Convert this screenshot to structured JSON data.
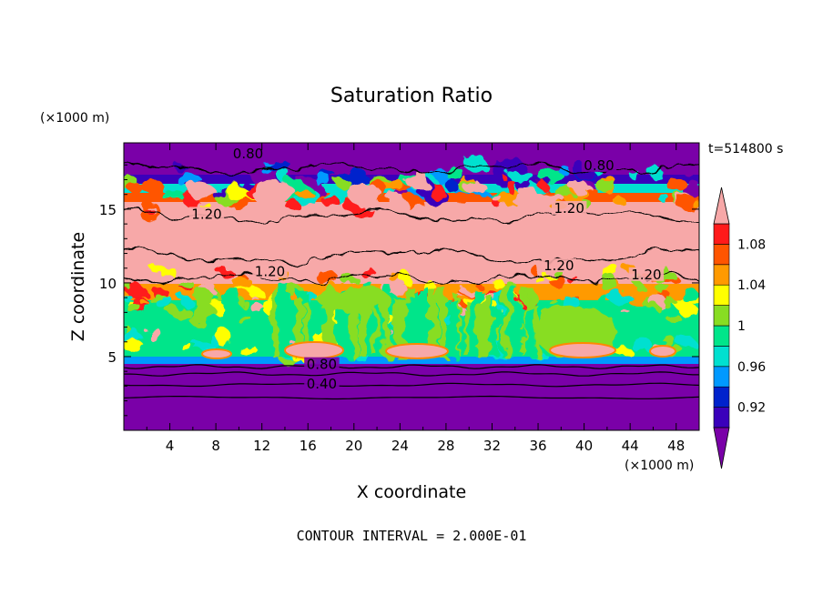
{
  "chart_data": {
    "type": "heatmap",
    "title": "Saturation Ratio",
    "xlabel": "X coordinate",
    "ylabel": "Z coordinate",
    "x_unit": "(×1000 m)",
    "y_unit": "(×1000 m)",
    "time_label": "t=514800 s",
    "footer": "CONTOUR INTERVAL = 2.000E-01",
    "xlim": [
      0,
      50
    ],
    "ylim": [
      0,
      19.5
    ],
    "x_ticks": [
      4,
      8,
      12,
      16,
      20,
      24,
      28,
      32,
      36,
      40,
      44,
      48
    ],
    "y_ticks": [
      5,
      10,
      15
    ],
    "colorbar": {
      "boundaries": [
        0.9,
        0.92,
        0.94,
        0.96,
        0.98,
        1.0,
        1.02,
        1.04,
        1.06,
        1.08,
        1.1
      ],
      "tick_labels": [
        "0.92",
        "0.96",
        "1",
        "1.04",
        "1.08"
      ],
      "tick_values": [
        0.92,
        0.96,
        1.0,
        1.04,
        1.08
      ],
      "colors": [
        "#7a00a8",
        "#3a00bb",
        "#0022cc",
        "#0099ff",
        "#00e0d0",
        "#00e58a",
        "#88dd22",
        "#ffff00",
        "#ff9a00",
        "#ff5500",
        "#ff1a1a",
        "#f7a8a8"
      ],
      "extend": "both"
    },
    "contour_labels": [
      {
        "text": "0.80",
        "x": 10.8,
        "z": 18.7
      },
      {
        "text": "0.80",
        "x": 41.3,
        "z": 17.9
      },
      {
        "text": "1.20",
        "x": 7.2,
        "z": 14.6
      },
      {
        "text": "1.20",
        "x": 38.7,
        "z": 15.0
      },
      {
        "text": "1.20",
        "x": 12.7,
        "z": 10.7
      },
      {
        "text": "1.20",
        "x": 45.4,
        "z": 10.5
      },
      {
        "text": "1.20",
        "x": 37.8,
        "z": 11.1
      },
      {
        "text": "0.80",
        "x": 17.2,
        "z": 4.4
      },
      {
        "text": "0.40",
        "x": 17.2,
        "z": 3.1
      }
    ]
  }
}
